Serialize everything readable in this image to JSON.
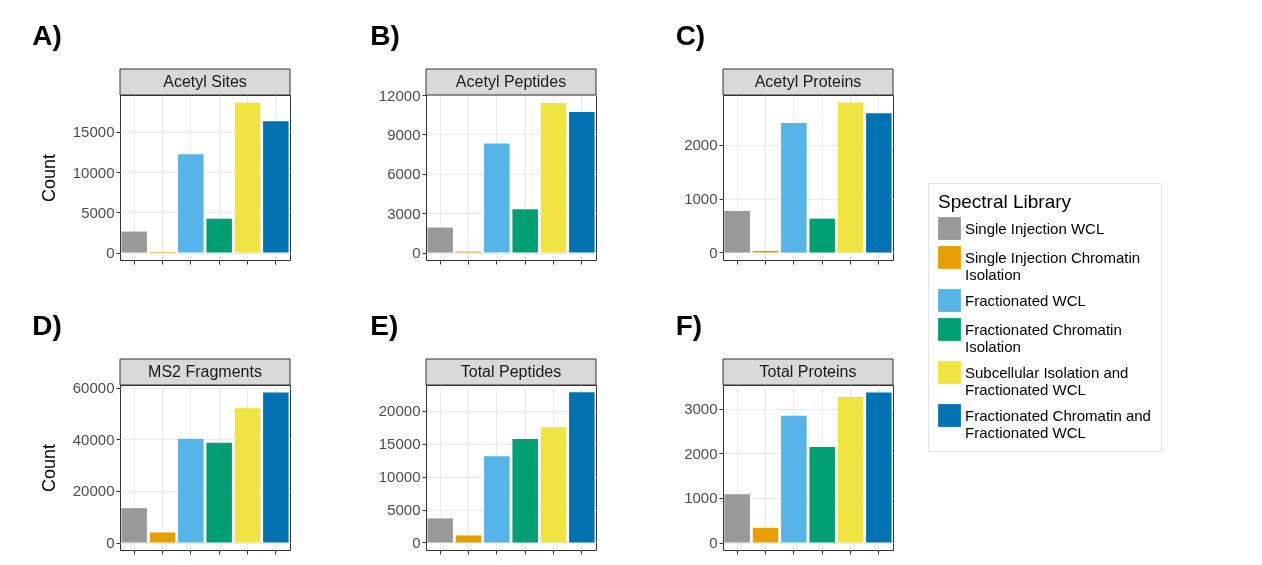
{
  "chart_data": [
    {
      "type": "bar",
      "title": "Acetyl Sites",
      "annotations": [
        "A)"
      ],
      "ylabel": "Count",
      "categories": [
        null,
        null,
        null,
        null,
        null,
        null
      ],
      "stacked": true,
      "ylim": [
        -930,
        19570
      ],
      "yticks": [
        0,
        5000,
        10000,
        15000
      ],
      "grid": true,
      "tick_labels": "y",
      "legend": "right",
      "legend_title": "Spectral Library",
      "series": [
        {
          "name": "Single Injection WCL",
          "color": "#999999",
          "values": [
            2600,
            null,
            null,
            null,
            null,
            null
          ]
        },
        {
          "name": "Single Injection Chromatin Isolation",
          "color": "#e69f00",
          "values": [
            null,
            80,
            null,
            null,
            null,
            null
          ]
        },
        {
          "name": "Fractionated WCL",
          "color": "#56b4e9",
          "values": [
            null,
            null,
            12200,
            null,
            null,
            null
          ]
        },
        {
          "name": "Fractionated Chromatin Isolation",
          "color": "#009e73",
          "values": [
            null,
            null,
            null,
            4200,
            null,
            null
          ]
        },
        {
          "name": "Subcellular Isolation and Fractionated WCL",
          "color": "#f0e442",
          "values": [
            null,
            null,
            null,
            null,
            18600,
            null
          ]
        },
        {
          "name": "Fractionated Chromatin and Fractionated WCL",
          "color": "#0072b2",
          "values": [
            null,
            null,
            null,
            null,
            null,
            16300
          ]
        }
      ]
    },
    {
      "type": "bar",
      "title": "Acetyl Peptides",
      "annotations": [
        "B)"
      ],
      "categories": [
        null,
        null,
        null,
        null,
        null,
        null
      ],
      "stacked": true,
      "ylim": [
        -570,
        12000
      ],
      "yticks": [
        0,
        3000,
        6000,
        9000,
        12000
      ],
      "grid": true,
      "tick_labels": "y",
      "legend": "right",
      "series": [
        {
          "name": "Single Injection WCL",
          "color": "#999999",
          "values": [
            1900,
            null,
            null,
            null,
            null,
            null
          ]
        },
        {
          "name": "Single Injection Chromatin Isolation",
          "color": "#e69f00",
          "values": [
            null,
            70,
            null,
            null,
            null,
            null
          ]
        },
        {
          "name": "Fractionated WCL",
          "color": "#56b4e9",
          "values": [
            null,
            null,
            8300,
            null,
            null,
            null
          ]
        },
        {
          "name": "Fractionated Chromatin Isolation",
          "color": "#009e73",
          "values": [
            null,
            null,
            null,
            3300,
            null,
            null
          ]
        },
        {
          "name": "Subcellular Isolation and Fractionated WCL",
          "color": "#f0e442",
          "values": [
            null,
            null,
            null,
            null,
            11400,
            null
          ]
        },
        {
          "name": "Fractionated Chromatin and Fractionated WCL",
          "color": "#0072b2",
          "values": [
            null,
            null,
            null,
            null,
            null,
            10700
          ]
        }
      ]
    },
    {
      "type": "bar",
      "title": "Acetyl Proteins",
      "annotations": [
        "C)"
      ],
      "categories": [
        null,
        null,
        null,
        null,
        null,
        null
      ],
      "stacked": true,
      "ylim": [
        -140,
        2930
      ],
      "yticks": [
        0,
        1000,
        2000
      ],
      "grid": true,
      "tick_labels": "y",
      "legend": "right",
      "series": [
        {
          "name": "Single Injection WCL",
          "color": "#999999",
          "values": [
            770,
            null,
            null,
            null,
            null,
            null
          ]
        },
        {
          "name": "Single Injection Chromatin Isolation",
          "color": "#e69f00",
          "values": [
            null,
            30,
            null,
            null,
            null,
            null
          ]
        },
        {
          "name": "Fractionated WCL",
          "color": "#56b4e9",
          "values": [
            null,
            null,
            2410,
            null,
            null,
            null
          ]
        },
        {
          "name": "Fractionated Chromatin Isolation",
          "color": "#009e73",
          "values": [
            null,
            null,
            null,
            630,
            null,
            null
          ]
        },
        {
          "name": "Subcellular Isolation and Fractionated WCL",
          "color": "#f0e442",
          "values": [
            null,
            null,
            null,
            null,
            2790,
            null
          ]
        },
        {
          "name": "Fractionated Chromatin and Fractionated WCL",
          "color": "#0072b2",
          "values": [
            null,
            null,
            null,
            null,
            null,
            2590
          ]
        }
      ]
    },
    {
      "type": "bar",
      "title": "MS2 Fragments",
      "annotations": [
        "D)"
      ],
      "ylabel": "Count",
      "categories": [
        null,
        null,
        null,
        null,
        null,
        null
      ],
      "stacked": true,
      "ylim": [
        -2900,
        61000
      ],
      "yticks": [
        0,
        20000,
        40000,
        60000
      ],
      "grid": true,
      "tick_labels": "y",
      "legend": "right",
      "series": [
        {
          "name": "Single Injection WCL",
          "color": "#999999",
          "values": [
            13300,
            null,
            null,
            null,
            null,
            null
          ]
        },
        {
          "name": "Single Injection Chromatin Isolation",
          "color": "#e69f00",
          "values": [
            null,
            3900,
            null,
            null,
            null,
            null
          ]
        },
        {
          "name": "Fractionated WCL",
          "color": "#56b4e9",
          "values": [
            null,
            null,
            40200,
            null,
            null,
            null
          ]
        },
        {
          "name": "Fractionated Chromatin Isolation",
          "color": "#009e73",
          "values": [
            null,
            null,
            null,
            38600,
            null,
            null
          ]
        },
        {
          "name": "Subcellular Isolation and Fractionated WCL",
          "color": "#f0e442",
          "values": [
            null,
            null,
            null,
            null,
            52000,
            null
          ]
        },
        {
          "name": "Fractionated Chromatin and Fractionated WCL",
          "color": "#0072b2",
          "values": [
            null,
            null,
            null,
            null,
            null,
            58100
          ]
        }
      ]
    },
    {
      "type": "bar",
      "title": "Total Peptides",
      "annotations": [
        "E)"
      ],
      "categories": [
        null,
        null,
        null,
        null,
        null,
        null
      ],
      "stacked": true,
      "ylim": [
        -1140,
        23900
      ],
      "yticks": [
        0,
        5000,
        10000,
        15000,
        20000
      ],
      "grid": true,
      "tick_labels": "y",
      "legend": "right",
      "series": [
        {
          "name": "Single Injection WCL",
          "color": "#999999",
          "values": [
            3650,
            null,
            null,
            null,
            null,
            null
          ]
        },
        {
          "name": "Single Injection Chromatin Isolation",
          "color": "#e69f00",
          "values": [
            null,
            1070,
            null,
            null,
            null,
            null
          ]
        },
        {
          "name": "Fractionated WCL",
          "color": "#56b4e9",
          "values": [
            null,
            null,
            13100,
            null,
            null,
            null
          ]
        },
        {
          "name": "Fractionated Chromatin Isolation",
          "color": "#009e73",
          "values": [
            null,
            null,
            null,
            15700,
            null,
            null
          ]
        },
        {
          "name": "Subcellular Isolation and Fractionated WCL",
          "color": "#f0e442",
          "values": [
            null,
            null,
            null,
            null,
            17500,
            null
          ]
        },
        {
          "name": "Fractionated Chromatin and Fractionated WCL",
          "color": "#0072b2",
          "values": [
            null,
            null,
            null,
            null,
            null,
            22800
          ]
        }
      ]
    },
    {
      "type": "bar",
      "title": "Total Proteins",
      "annotations": [
        "F)"
      ],
      "categories": [
        null,
        null,
        null,
        null,
        null,
        null
      ],
      "stacked": true,
      "ylim": [
        -168,
        3530
      ],
      "yticks": [
        0,
        1000,
        2000,
        3000
      ],
      "grid": true,
      "tick_labels": "y",
      "legend": "right",
      "series": [
        {
          "name": "Single Injection WCL",
          "color": "#999999",
          "values": [
            1080,
            null,
            null,
            null,
            null,
            null
          ]
        },
        {
          "name": "Single Injection Chromatin Isolation",
          "color": "#e69f00",
          "values": [
            null,
            330,
            null,
            null,
            null,
            null
          ]
        },
        {
          "name": "Fractionated WCL",
          "color": "#56b4e9",
          "values": [
            null,
            null,
            2840,
            null,
            null,
            null
          ]
        },
        {
          "name": "Fractionated Chromatin Isolation",
          "color": "#009e73",
          "values": [
            null,
            null,
            null,
            2140,
            null,
            null
          ]
        },
        {
          "name": "Subcellular Isolation and Fractionated WCL",
          "color": "#f0e442",
          "values": [
            null,
            null,
            null,
            null,
            3260,
            null
          ]
        },
        {
          "name": "Fractionated Chromatin and Fractionated WCL",
          "color": "#0072b2",
          "values": [
            null,
            null,
            null,
            null,
            null,
            3360
          ]
        }
      ]
    }
  ]
}
